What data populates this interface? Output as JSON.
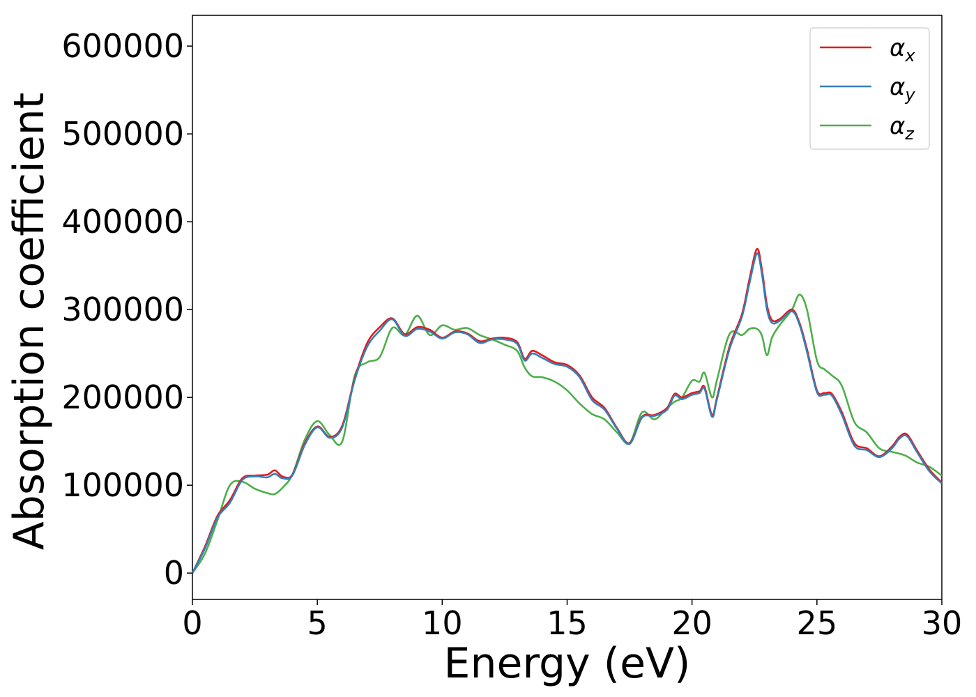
{
  "chart_data": {
    "type": "line",
    "title": "",
    "xlabel": "Energy (eV)",
    "ylabel": "Absorption coefficient",
    "xlim": [
      0,
      30
    ],
    "ylim": [
      -30000,
      635000
    ],
    "xticks": [
      0,
      5,
      10,
      15,
      20,
      25,
      30
    ],
    "yticks": [
      0,
      100000,
      200000,
      300000,
      400000,
      500000,
      600000
    ],
    "xtick_labels": [
      "0",
      "5",
      "10",
      "15",
      "20",
      "25",
      "30"
    ],
    "ytick_labels": [
      "0",
      "100000",
      "200000",
      "300000",
      "400000",
      "500000",
      "600000"
    ],
    "grid": false,
    "legend_position": "top-right",
    "x": [
      0,
      0.5,
      1.0,
      1.5,
      2.0,
      2.5,
      3.0,
      3.3,
      3.6,
      4.0,
      4.5,
      5.0,
      5.5,
      6.0,
      6.5,
      7.0,
      7.5,
      8.0,
      8.5,
      9.0,
      9.5,
      10.0,
      10.5,
      11.0,
      11.5,
      12.0,
      12.5,
      13.0,
      13.3,
      13.6,
      14.0,
      14.5,
      15.0,
      15.5,
      16.0,
      16.5,
      17.0,
      17.5,
      18.0,
      18.5,
      19.0,
      19.3,
      19.6,
      20.0,
      20.3,
      20.5,
      20.8,
      21.0,
      21.5,
      22.0,
      22.3,
      22.6,
      22.8,
      23.0,
      23.2,
      23.5,
      24.0,
      24.3,
      24.6,
      25.0,
      25.3,
      25.6,
      26.0,
      26.5,
      27.0,
      27.5,
      28.0,
      28.3,
      28.6,
      29.0,
      29.5,
      30.0
    ],
    "series": [
      {
        "name": "αx",
        "color": "#e41a1c",
        "values": [
          0,
          30000,
          65000,
          83000,
          108000,
          111000,
          112000,
          117000,
          110000,
          112000,
          148000,
          167000,
          155000,
          168000,
          222000,
          262000,
          280000,
          290000,
          272000,
          280000,
          277000,
          268000,
          275000,
          273000,
          264000,
          267000,
          268000,
          263000,
          244000,
          253000,
          248000,
          240000,
          237000,
          225000,
          200000,
          188000,
          165000,
          148000,
          178000,
          180000,
          188000,
          204000,
          200000,
          205000,
          207000,
          212000,
          180000,
          200000,
          258000,
          295000,
          335000,
          369000,
          345000,
          305000,
          288000,
          289000,
          300000,
          285000,
          255000,
          208000,
          205000,
          204000,
          183000,
          148000,
          142000,
          133000,
          144000,
          155000,
          158000,
          140000,
          118000,
          103000
        ]
      },
      {
        "name": "αy",
        "color": "#377eb8",
        "values": [
          0,
          28000,
          63000,
          80000,
          106000,
          110000,
          109000,
          113000,
          108000,
          111000,
          146000,
          166000,
          154000,
          166000,
          220000,
          258000,
          276000,
          289000,
          270000,
          278000,
          275000,
          267000,
          274000,
          272000,
          262000,
          266000,
          266000,
          261000,
          242000,
          250000,
          245000,
          238000,
          235000,
          223000,
          197000,
          186000,
          164000,
          147000,
          177000,
          179000,
          186000,
          202000,
          198000,
          203000,
          205000,
          210000,
          178000,
          198000,
          255000,
          292000,
          330000,
          364000,
          340000,
          300000,
          285000,
          287000,
          298000,
          283000,
          252000,
          206000,
          203000,
          202000,
          180000,
          145000,
          140000,
          132000,
          142000,
          153000,
          156000,
          138000,
          116000,
          102000
        ]
      },
      {
        "name": "αz",
        "color": "#4daf4a",
        "values": [
          0,
          22000,
          60000,
          100000,
          104000,
          96000,
          91000,
          90000,
          97000,
          112000,
          152000,
          173000,
          157000,
          150000,
          225000,
          240000,
          246000,
          279000,
          271000,
          293000,
          271000,
          282000,
          277000,
          279000,
          271000,
          266000,
          260000,
          253000,
          234000,
          224000,
          223000,
          218000,
          208000,
          193000,
          181000,
          175000,
          160000,
          148000,
          183000,
          175000,
          188000,
          195000,
          200000,
          219000,
          218000,
          228000,
          200000,
          220000,
          272000,
          271000,
          278000,
          278000,
          270000,
          248000,
          268000,
          282000,
          300000,
          317000,
          300000,
          242000,
          232000,
          225000,
          213000,
          172000,
          160000,
          142000,
          138000,
          136000,
          133000,
          126000,
          121000,
          111000
        ]
      }
    ],
    "legend": [
      {
        "base": "α",
        "sub": "x"
      },
      {
        "base": "α",
        "sub": "y"
      },
      {
        "base": "α",
        "sub": "z"
      }
    ]
  }
}
